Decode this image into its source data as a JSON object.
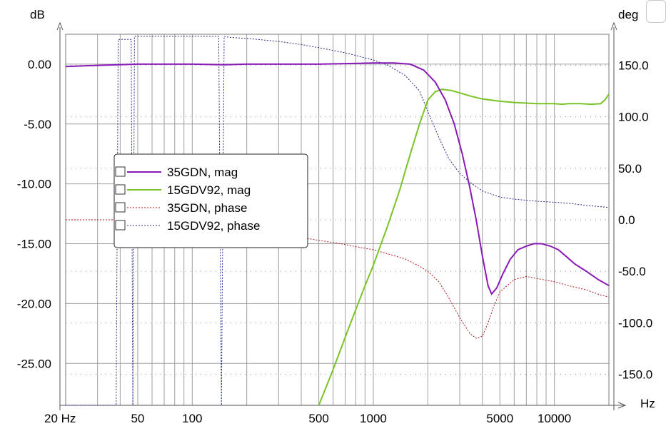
{
  "chart_data": {
    "type": "line",
    "y_left_unit": "dB",
    "y_right_unit": "deg",
    "x_unit": "Hz",
    "x_scale": "log",
    "xlim": [
      20,
      20000
    ],
    "ylim_left": [
      -28.5,
      2.5
    ],
    "ylim_right": [
      -180,
      180
    ],
    "x_ticks": [
      {
        "value": 20,
        "label": "20 Hz"
      },
      {
        "value": 50,
        "label": "50"
      },
      {
        "value": 100,
        "label": "100"
      },
      {
        "value": 500,
        "label": "500"
      },
      {
        "value": 1000,
        "label": "1000"
      },
      {
        "value": 5000,
        "label": "5000"
      },
      {
        "value": 10000,
        "label": "10000"
      }
    ],
    "y_left_ticks": [
      {
        "value": 0,
        "label": "0.00"
      },
      {
        "value": -5,
        "label": "-5.00"
      },
      {
        "value": -10,
        "label": "-10.00"
      },
      {
        "value": -15,
        "label": "-15.00"
      },
      {
        "value": -20,
        "label": "-20.00"
      },
      {
        "value": -25,
        "label": "-25.00"
      }
    ],
    "y_right_ticks": [
      {
        "value": 150,
        "label": "150.0"
      },
      {
        "value": 100,
        "label": "100.0"
      },
      {
        "value": 50,
        "label": "50.0"
      },
      {
        "value": 0,
        "label": "0.0"
      },
      {
        "value": -50,
        "label": "-50.0"
      },
      {
        "value": -100,
        "label": "-100.0"
      },
      {
        "value": -150,
        "label": "-150.0"
      }
    ],
    "grid": true,
    "legend_position": "middle-left",
    "series": [
      {
        "name": "35GDN, mag",
        "axis": "left",
        "style": "solid",
        "color": "#8a1ab8",
        "x": [
          20,
          30,
          50,
          80,
          100,
          150,
          200,
          300,
          500,
          700,
          1000,
          1300,
          1600,
          1900,
          2200,
          2500,
          2800,
          3100,
          3400,
          3700,
          4000,
          4300,
          4500,
          4800,
          5200,
          5700,
          6300,
          7000,
          7700,
          8500,
          9500,
          10500,
          11500,
          13000,
          15000,
          17500,
          20000
        ],
        "y": [
          -0.2,
          -0.1,
          0.0,
          0.0,
          0.0,
          -0.05,
          0.0,
          0.0,
          0.0,
          0.05,
          0.1,
          0.1,
          0.0,
          -0.5,
          -1.5,
          -3.0,
          -5.0,
          -7.5,
          -10.2,
          -13.0,
          -16.0,
          -18.5,
          -19.2,
          -18.7,
          -17.5,
          -16.3,
          -15.5,
          -15.2,
          -15.0,
          -15.0,
          -15.2,
          -15.5,
          -16.0,
          -16.7,
          -17.3,
          -18.0,
          -18.5
        ]
      },
      {
        "name": "15GDV92, mag",
        "axis": "left",
        "style": "solid",
        "color": "#7ac428",
        "x": [
          500,
          600,
          700,
          800,
          900,
          1000,
          1200,
          1400,
          1600,
          1800,
          2000,
          2200,
          2400,
          2700,
          3000,
          3500,
          4000,
          5000,
          6000,
          7000,
          8000,
          9000,
          10000,
          11000,
          12000,
          14000,
          16000,
          18000,
          19000,
          20000
        ],
        "y": [
          -28.5,
          -25.5,
          -22.8,
          -20.5,
          -18.5,
          -16.8,
          -13.5,
          -10.5,
          -7.5,
          -5.0,
          -3.0,
          -2.3,
          -2.1,
          -2.2,
          -2.4,
          -2.7,
          -2.9,
          -3.1,
          -3.2,
          -3.25,
          -3.3,
          -3.3,
          -3.3,
          -3.35,
          -3.3,
          -3.3,
          -3.35,
          -3.3,
          -3.0,
          -2.5
        ]
      },
      {
        "name": "35GDN, phase",
        "axis": "right",
        "style": "dotted",
        "color": "#b01818",
        "x": [
          20,
          40,
          60,
          100,
          150,
          200,
          300,
          400,
          500,
          600,
          700,
          800,
          1000,
          1200,
          1500,
          1800,
          2000,
          2300,
          2600,
          3000,
          3400,
          3700,
          4000,
          4300,
          4600,
          5000,
          6000,
          7000,
          8000,
          10000,
          12000,
          15000,
          18000,
          20000
        ],
        "y": [
          0,
          0,
          -3,
          -6,
          -9,
          -11,
          -14,
          -17,
          -20,
          -22,
          -24,
          -26,
          -29,
          -33,
          -38,
          -45,
          -50,
          -60,
          -75,
          -95,
          -110,
          -115,
          -113,
          -100,
          -85,
          -70,
          -58,
          -55,
          -57,
          -60,
          -64,
          -68,
          -73,
          -75
        ]
      },
      {
        "name": "15GDV92, phase",
        "axis": "right",
        "style": "dotted",
        "color": "#2a2a8a",
        "x": [
          20,
          30,
          38,
          39,
          40,
          45,
          46,
          47,
          48,
          49,
          50,
          60,
          80,
          100,
          140,
          145,
          150,
          160,
          200,
          300,
          400,
          500,
          700,
          1000,
          1200,
          1500,
          1800,
          2000,
          2300,
          2600,
          3000,
          3500,
          4000,
          5000,
          6000,
          7000,
          8000,
          10000,
          12000,
          15000,
          20000
        ],
        "y": [
          -180,
          -180,
          -180,
          175,
          175,
          175,
          175,
          -180,
          178,
          178,
          178,
          178,
          178,
          178,
          178,
          -180,
          178,
          177,
          176,
          173,
          170,
          167,
          162,
          155,
          150,
          140,
          125,
          105,
          80,
          60,
          45,
          35,
          28,
          22,
          20,
          19,
          18,
          17,
          16,
          14,
          12
        ]
      }
    ]
  }
}
